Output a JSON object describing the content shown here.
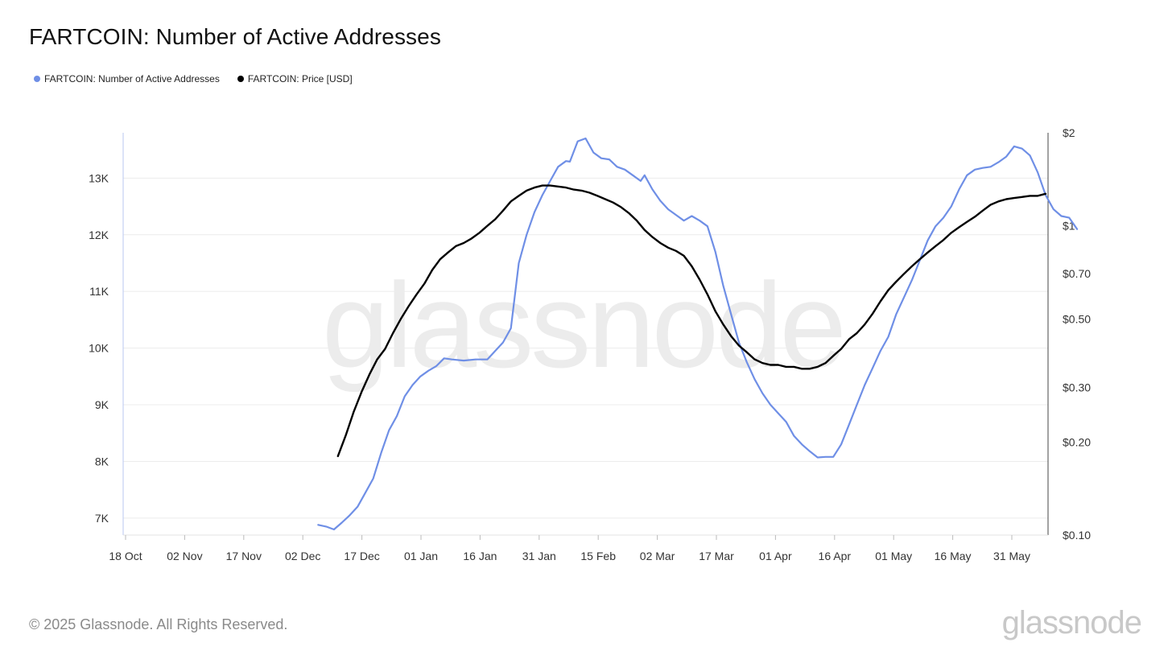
{
  "title": "FARTCOIN: Number of Active Addresses",
  "legend": [
    {
      "label": "FARTCOIN: Number of Active Addresses",
      "color": "#6f8fe6"
    },
    {
      "label": "FARTCOIN: Price [USD]",
      "color": "#000000"
    }
  ],
  "watermark": "glassnode",
  "footer": {
    "copyright": "© 2025 Glassnode. All Rights Reserved.",
    "brand": "glassnode"
  },
  "chart_data": {
    "type": "line",
    "x_ticks": [
      "18 Oct",
      "02 Nov",
      "17 Nov",
      "02 Dec",
      "17 Dec",
      "01 Jan",
      "16 Jan",
      "31 Jan",
      "15 Feb",
      "02 Mar",
      "17 Mar",
      "01 Apr",
      "16 Apr",
      "01 May",
      "16 May",
      "31 May"
    ],
    "x_range": [
      "2024-10-18",
      "2025-06-09"
    ],
    "y_left_ticks": [
      {
        "label": "7K",
        "value": 7000
      },
      {
        "label": "8K",
        "value": 8000
      },
      {
        "label": "9K",
        "value": 9000
      },
      {
        "label": "10K",
        "value": 10000
      },
      {
        "label": "11K",
        "value": 11000
      },
      {
        "label": "12K",
        "value": 12000
      },
      {
        "label": "13K",
        "value": 13000
      }
    ],
    "y_left_range": [
      6700,
      13800
    ],
    "y_right_ticks": [
      {
        "label": "$0.10",
        "value": 0.1
      },
      {
        "label": "$0.20",
        "value": 0.2
      },
      {
        "label": "$0.30",
        "value": 0.3
      },
      {
        "label": "$0.50",
        "value": 0.5
      },
      {
        "label": "$0.70",
        "value": 0.7
      },
      {
        "label": "$1",
        "value": 1
      },
      {
        "label": "$2",
        "value": 2
      }
    ],
    "y_right_range": [
      0.1,
      2
    ],
    "y_right_scale": "log",
    "grid": true,
    "series": [
      {
        "name": "FARTCOIN: Number of Active Addresses",
        "axis": "left",
        "color": "#6f8fe6",
        "points": [
          [
            "2024-12-06",
            6880
          ],
          [
            "2024-12-08",
            6850
          ],
          [
            "2024-12-10",
            6800
          ],
          [
            "2024-12-12",
            6920
          ],
          [
            "2024-12-14",
            7050
          ],
          [
            "2024-12-16",
            7200
          ],
          [
            "2024-12-18",
            7450
          ],
          [
            "2024-12-20",
            7700
          ],
          [
            "2024-12-22",
            8150
          ],
          [
            "2024-12-24",
            8550
          ],
          [
            "2024-12-26",
            8800
          ],
          [
            "2024-12-28",
            9150
          ],
          [
            "2024-12-30",
            9350
          ],
          [
            "2025-01-01",
            9500
          ],
          [
            "2025-01-03",
            9600
          ],
          [
            "2025-01-05",
            9680
          ],
          [
            "2025-01-07",
            9820
          ],
          [
            "2025-01-09",
            9800
          ],
          [
            "2025-01-12",
            9780
          ],
          [
            "2025-01-15",
            9800
          ],
          [
            "2025-01-18",
            9800
          ],
          [
            "2025-01-20",
            9950
          ],
          [
            "2025-01-22",
            10100
          ],
          [
            "2025-01-24",
            10350
          ],
          [
            "2025-01-26",
            11500
          ],
          [
            "2025-01-28",
            12000
          ],
          [
            "2025-01-30",
            12400
          ],
          [
            "2025-02-01",
            12700
          ],
          [
            "2025-02-03",
            12950
          ],
          [
            "2025-02-05",
            13200
          ],
          [
            "2025-02-07",
            13300
          ],
          [
            "2025-02-08",
            13290
          ],
          [
            "2025-02-10",
            13650
          ],
          [
            "2025-02-12",
            13700
          ],
          [
            "2025-02-14",
            13450
          ],
          [
            "2025-02-16",
            13350
          ],
          [
            "2025-02-18",
            13330
          ],
          [
            "2025-02-20",
            13200
          ],
          [
            "2025-02-22",
            13150
          ],
          [
            "2025-02-24",
            13050
          ],
          [
            "2025-02-26",
            12950
          ],
          [
            "2025-02-27",
            13050
          ],
          [
            "2025-03-01",
            12800
          ],
          [
            "2025-03-03",
            12600
          ],
          [
            "2025-03-05",
            12450
          ],
          [
            "2025-03-07",
            12350
          ],
          [
            "2025-03-09",
            12250
          ],
          [
            "2025-03-11",
            12330
          ],
          [
            "2025-03-13",
            12250
          ],
          [
            "2025-03-15",
            12150
          ],
          [
            "2025-03-17",
            11700
          ],
          [
            "2025-03-19",
            11100
          ],
          [
            "2025-03-21",
            10600
          ],
          [
            "2025-03-23",
            10100
          ],
          [
            "2025-03-25",
            9750
          ],
          [
            "2025-03-27",
            9450
          ],
          [
            "2025-03-29",
            9200
          ],
          [
            "2025-03-31",
            9000
          ],
          [
            "2025-04-02",
            8850
          ],
          [
            "2025-04-04",
            8700
          ],
          [
            "2025-04-06",
            8450
          ],
          [
            "2025-04-08",
            8300
          ],
          [
            "2025-04-10",
            8180
          ],
          [
            "2025-04-12",
            8070
          ],
          [
            "2025-04-14",
            8080
          ],
          [
            "2025-04-16",
            8080
          ],
          [
            "2025-04-18",
            8300
          ],
          [
            "2025-04-20",
            8650
          ],
          [
            "2025-04-22",
            9000
          ],
          [
            "2025-04-24",
            9350
          ],
          [
            "2025-04-26",
            9650
          ],
          [
            "2025-04-28",
            9950
          ],
          [
            "2025-04-30",
            10200
          ],
          [
            "2025-05-02",
            10600
          ],
          [
            "2025-05-04",
            10900
          ],
          [
            "2025-05-06",
            11200
          ],
          [
            "2025-05-08",
            11550
          ],
          [
            "2025-05-10",
            11900
          ],
          [
            "2025-05-12",
            12150
          ],
          [
            "2025-05-14",
            12300
          ],
          [
            "2025-05-16",
            12500
          ],
          [
            "2025-05-18",
            12800
          ],
          [
            "2025-05-20",
            13050
          ],
          [
            "2025-05-22",
            13150
          ],
          [
            "2025-05-24",
            13180
          ],
          [
            "2025-05-26",
            13200
          ],
          [
            "2025-05-28",
            13280
          ],
          [
            "2025-05-30",
            13380
          ],
          [
            "2025-06-01",
            13560
          ],
          [
            "2025-06-03",
            13520
          ],
          [
            "2025-06-05",
            13400
          ],
          [
            "2025-06-07",
            13100
          ],
          [
            "2025-06-09",
            12700
          ],
          [
            "2025-06-11",
            12450
          ],
          [
            "2025-06-13",
            12330
          ],
          [
            "2025-06-15",
            12300
          ],
          [
            "2025-06-17",
            12100
          ]
        ]
      },
      {
        "name": "FARTCOIN: Price [USD]",
        "axis": "right",
        "color": "#000000",
        "points": [
          [
            "2024-12-11",
            0.18
          ],
          [
            "2024-12-13",
            0.21
          ],
          [
            "2024-12-15",
            0.25
          ],
          [
            "2024-12-17",
            0.29
          ],
          [
            "2024-12-19",
            0.33
          ],
          [
            "2024-12-21",
            0.37
          ],
          [
            "2024-12-23",
            0.4
          ],
          [
            "2024-12-25",
            0.45
          ],
          [
            "2024-12-27",
            0.5
          ],
          [
            "2024-12-29",
            0.55
          ],
          [
            "2024-12-31",
            0.6
          ],
          [
            "2025-01-02",
            0.65
          ],
          [
            "2025-01-04",
            0.72
          ],
          [
            "2025-01-06",
            0.78
          ],
          [
            "2025-01-08",
            0.82
          ],
          [
            "2025-01-10",
            0.86
          ],
          [
            "2025-01-12",
            0.88
          ],
          [
            "2025-01-14",
            0.91
          ],
          [
            "2025-01-16",
            0.95
          ],
          [
            "2025-01-18",
            1.0
          ],
          [
            "2025-01-20",
            1.05
          ],
          [
            "2025-01-22",
            1.12
          ],
          [
            "2025-01-24",
            1.2
          ],
          [
            "2025-01-26",
            1.25
          ],
          [
            "2025-01-28",
            1.3
          ],
          [
            "2025-01-30",
            1.33
          ],
          [
            "2025-02-01",
            1.35
          ],
          [
            "2025-02-03",
            1.35
          ],
          [
            "2025-02-05",
            1.34
          ],
          [
            "2025-02-07",
            1.33
          ],
          [
            "2025-02-09",
            1.31
          ],
          [
            "2025-02-11",
            1.3
          ],
          [
            "2025-02-13",
            1.28
          ],
          [
            "2025-02-15",
            1.25
          ],
          [
            "2025-02-17",
            1.22
          ],
          [
            "2025-02-19",
            1.19
          ],
          [
            "2025-02-21",
            1.15
          ],
          [
            "2025-02-23",
            1.1
          ],
          [
            "2025-02-25",
            1.04
          ],
          [
            "2025-02-27",
            0.97
          ],
          [
            "2025-03-01",
            0.92
          ],
          [
            "2025-03-03",
            0.88
          ],
          [
            "2025-03-05",
            0.85
          ],
          [
            "2025-03-07",
            0.83
          ],
          [
            "2025-03-09",
            0.8
          ],
          [
            "2025-03-11",
            0.74
          ],
          [
            "2025-03-13",
            0.67
          ],
          [
            "2025-03-15",
            0.6
          ],
          [
            "2025-03-17",
            0.53
          ],
          [
            "2025-03-19",
            0.48
          ],
          [
            "2025-03-21",
            0.44
          ],
          [
            "2025-03-23",
            0.41
          ],
          [
            "2025-03-25",
            0.39
          ],
          [
            "2025-03-27",
            0.37
          ],
          [
            "2025-03-29",
            0.36
          ],
          [
            "2025-03-31",
            0.355
          ],
          [
            "2025-04-02",
            0.355
          ],
          [
            "2025-04-04",
            0.35
          ],
          [
            "2025-04-06",
            0.35
          ],
          [
            "2025-04-08",
            0.345
          ],
          [
            "2025-04-10",
            0.345
          ],
          [
            "2025-04-12",
            0.35
          ],
          [
            "2025-04-14",
            0.36
          ],
          [
            "2025-04-16",
            0.38
          ],
          [
            "2025-04-18",
            0.4
          ],
          [
            "2025-04-20",
            0.43
          ],
          [
            "2025-04-22",
            0.45
          ],
          [
            "2025-04-24",
            0.48
          ],
          [
            "2025-04-26",
            0.52
          ],
          [
            "2025-04-28",
            0.57
          ],
          [
            "2025-04-30",
            0.62
          ],
          [
            "2025-05-02",
            0.66
          ],
          [
            "2025-05-04",
            0.7
          ],
          [
            "2025-05-06",
            0.74
          ],
          [
            "2025-05-08",
            0.78
          ],
          [
            "2025-05-10",
            0.82
          ],
          [
            "2025-05-12",
            0.86
          ],
          [
            "2025-05-14",
            0.9
          ],
          [
            "2025-05-16",
            0.95
          ],
          [
            "2025-05-18",
            0.99
          ],
          [
            "2025-05-20",
            1.03
          ],
          [
            "2025-05-22",
            1.07
          ],
          [
            "2025-05-24",
            1.12
          ],
          [
            "2025-05-26",
            1.17
          ],
          [
            "2025-05-28",
            1.2
          ],
          [
            "2025-05-30",
            1.22
          ],
          [
            "2025-06-01",
            1.23
          ],
          [
            "2025-06-03",
            1.24
          ],
          [
            "2025-06-05",
            1.25
          ],
          [
            "2025-06-07",
            1.25
          ],
          [
            "2025-06-09",
            1.27
          ]
        ]
      }
    ]
  }
}
